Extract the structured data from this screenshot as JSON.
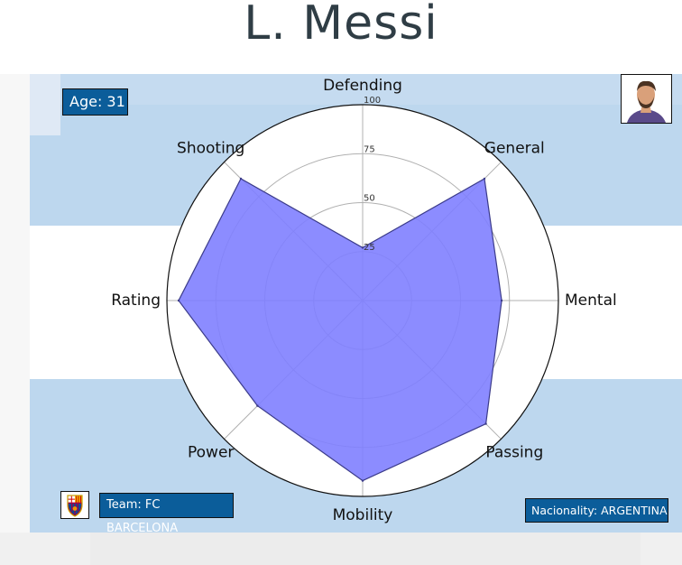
{
  "title": "L. Messi",
  "info": {
    "age": "Age: 31",
    "team": "Team: FC BARCELONA",
    "nationality": "Nacionality: ARGENTINA"
  },
  "colors": {
    "flag_light_blue": "#bdd7ee",
    "flag_white": "#ffffff",
    "fill": "#8080ff",
    "box_blue": "#0b5d9a",
    "title": "#2f3d45"
  },
  "icons": {
    "player_photo": "player-photo-icon",
    "team_crest": "fc-barcelona-crest-icon"
  },
  "chart_data": {
    "type": "radar",
    "categories": [
      "Defending",
      "General",
      "Mental",
      "Passing",
      "Mobility",
      "Power",
      "Rating",
      "Shooting"
    ],
    "values": [
      27,
      88,
      71,
      89,
      92,
      76,
      94,
      88
    ],
    "rlim": [
      0,
      100
    ],
    "r_ticks": [
      25,
      50,
      75,
      100
    ],
    "r_tick_labels": [
      "25",
      "50",
      "75",
      "100"
    ],
    "grid": true
  }
}
